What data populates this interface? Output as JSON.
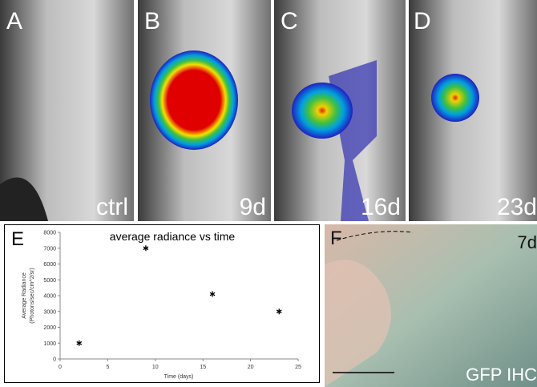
{
  "panels": [
    {
      "letter": "A",
      "label": "ctrl"
    },
    {
      "letter": "B",
      "label": "9d"
    },
    {
      "letter": "C",
      "label": "16d"
    },
    {
      "letter": "D",
      "label": "23d"
    },
    {
      "letter": "E"
    },
    {
      "letter": "F",
      "label": "7d",
      "caption": "GFP IHC"
    }
  ],
  "chart_data": {
    "type": "scatter",
    "title": "average radiance vs time",
    "xlabel": "Time (days)",
    "ylabel": [
      "Average Radiance",
      "(Photons/sec/cm^2/sr)"
    ],
    "x": [
      2,
      9,
      16,
      23
    ],
    "values": [
      1000,
      7000,
      4100,
      3000
    ],
    "color": "#000000",
    "xlim": [
      0,
      25
    ],
    "xticks": [
      0,
      5,
      10,
      15,
      20,
      25
    ],
    "ylim": [
      0,
      8000
    ],
    "yticks": [
      0,
      1000,
      2000,
      3000,
      4000,
      5000,
      6000,
      7000,
      8000
    ]
  }
}
